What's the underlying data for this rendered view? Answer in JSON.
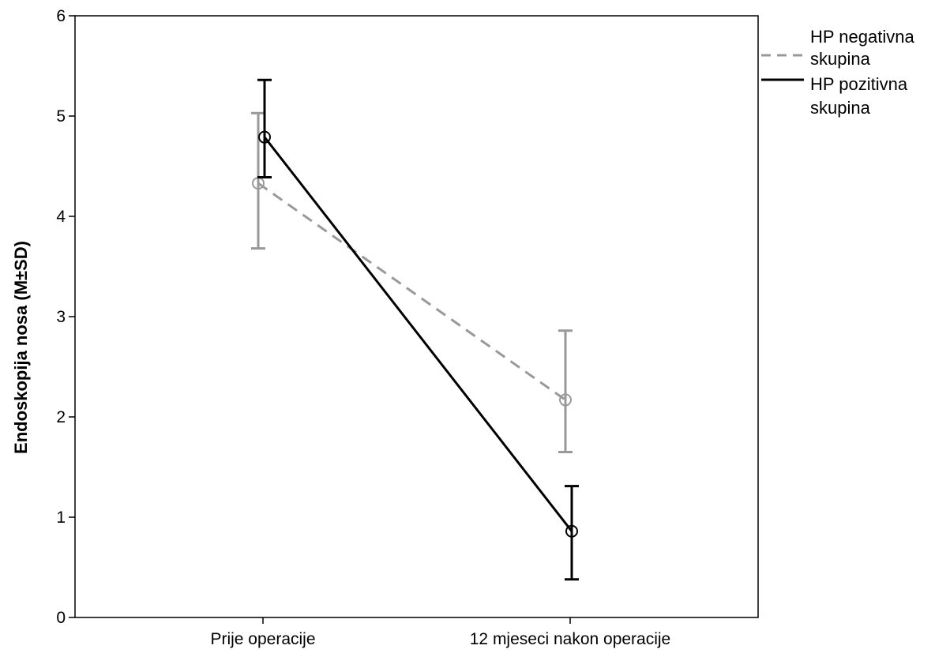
{
  "chart_data": {
    "type": "line",
    "title": "",
    "xlabel": "",
    "ylabel": "Endoskopija nosa (M±SD)",
    "categories": [
      "Prije operacije",
      "12 mjeseci nakon operacije"
    ],
    "ylim": [
      0,
      6
    ],
    "yticks": [
      "0",
      "1",
      "2",
      "3",
      "4",
      "5",
      "6"
    ],
    "grid": false,
    "legend_position": "right, outside plot",
    "series": [
      {
        "name": "HP negativna skupina",
        "style": "dashed",
        "color": "#999999",
        "values": [
          4.33,
          2.17
        ],
        "error_low": [
          3.68,
          1.65
        ],
        "error_high": [
          5.03,
          2.86
        ]
      },
      {
        "name": "HP pozitivna skupina",
        "style": "solid",
        "color": "#000000",
        "values": [
          4.79,
          0.86
        ],
        "error_low": [
          4.39,
          0.38
        ],
        "error_high": [
          5.36,
          1.31
        ]
      }
    ],
    "legend": {
      "entries": [
        {
          "line1": "HP negativna",
          "line2": "skupina"
        },
        {
          "line1": "HP pozitivna",
          "line2": "skupina"
        }
      ]
    }
  }
}
